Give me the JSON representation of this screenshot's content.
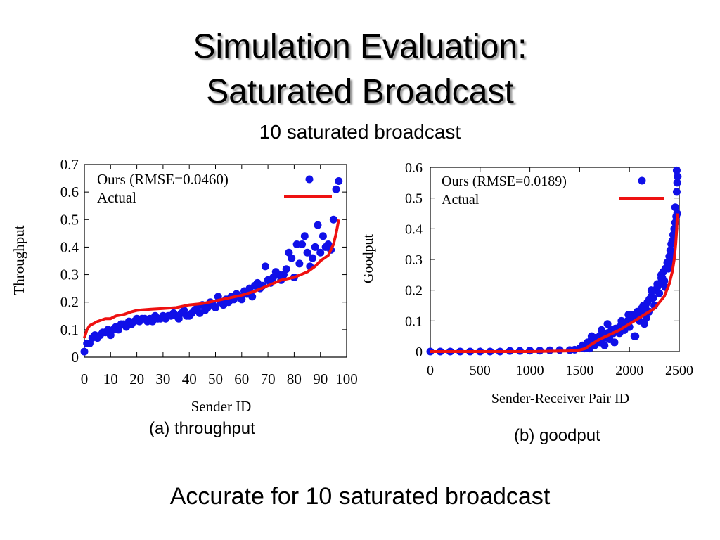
{
  "slide": {
    "title_line1": "Simulation Evaluation:",
    "title_line2": "Saturated Broadcast",
    "subtitle": "10 saturated broadcast",
    "caption_a": "(a) throughput",
    "caption_b": "(b) goodput",
    "footer": "Accurate for 10 saturated broadcast"
  },
  "colors": {
    "ours": "#1010e8",
    "actual": "#ee1111"
  },
  "chart_data": [
    {
      "type": "scatter",
      "xlabel": "Sender ID",
      "ylabel": "Throughput",
      "xlim": [
        0,
        100
      ],
      "ylim": [
        0,
        0.7
      ],
      "xticks": [
        "0",
        "10",
        "20",
        "30",
        "40",
        "50",
        "60",
        "70",
        "80",
        "90",
        "100"
      ],
      "yticks": [
        "0",
        "0.1",
        "0.2",
        "0.3",
        "0.4",
        "0.5",
        "0.6",
        "0.7"
      ],
      "legend_position": "top-right",
      "series": [
        {
          "name": "Ours (RMSE=0.0460)",
          "kind": "points",
          "x": [
            0,
            1,
            2,
            3,
            4,
            5,
            6,
            7,
            8,
            9,
            10,
            11,
            12,
            13,
            14,
            15,
            16,
            17,
            18,
            19,
            20,
            21,
            22,
            23,
            24,
            25,
            26,
            27,
            28,
            29,
            30,
            31,
            32,
            33,
            34,
            35,
            36,
            37,
            38,
            39,
            40,
            41,
            42,
            43,
            44,
            45,
            46,
            47,
            48,
            49,
            50,
            51,
            52,
            53,
            54,
            55,
            56,
            57,
            58,
            59,
            60,
            61,
            62,
            63,
            64,
            65,
            66,
            67,
            68,
            69,
            70,
            71,
            72,
            73,
            74,
            75,
            76,
            77,
            78,
            79,
            80,
            81,
            82,
            83,
            84,
            85,
            86,
            87,
            88,
            89,
            90,
            91,
            92,
            93,
            94,
            95,
            96,
            97
          ],
          "y": [
            0.02,
            0.05,
            0.05,
            0.07,
            0.08,
            0.07,
            0.08,
            0.09,
            0.09,
            0.1,
            0.08,
            0.1,
            0.11,
            0.1,
            0.12,
            0.12,
            0.11,
            0.13,
            0.12,
            0.13,
            0.14,
            0.13,
            0.14,
            0.14,
            0.13,
            0.14,
            0.13,
            0.15,
            0.14,
            0.14,
            0.15,
            0.14,
            0.15,
            0.15,
            0.16,
            0.15,
            0.14,
            0.16,
            0.17,
            0.15,
            0.15,
            0.16,
            0.17,
            0.18,
            0.16,
            0.19,
            0.17,
            0.18,
            0.2,
            0.19,
            0.18,
            0.22,
            0.2,
            0.19,
            0.21,
            0.2,
            0.22,
            0.21,
            0.23,
            0.22,
            0.21,
            0.24,
            0.23,
            0.25,
            0.22,
            0.26,
            0.27,
            0.25,
            0.26,
            0.33,
            0.28,
            0.27,
            0.29,
            0.31,
            0.3,
            0.28,
            0.3,
            0.32,
            0.38,
            0.36,
            0.29,
            0.41,
            0.34,
            0.41,
            0.44,
            0.38,
            0.33,
            0.36,
            0.4,
            0.48,
            0.38,
            0.44,
            0.4,
            0.41,
            0.39,
            0.5,
            0.61,
            0.64
          ]
        },
        {
          "name": "Actual",
          "kind": "line",
          "x": [
            0,
            1,
            2,
            5,
            8,
            10,
            12,
            15,
            18,
            20,
            22,
            25,
            30,
            35,
            40,
            45,
            50,
            55,
            60,
            65,
            70,
            75,
            80,
            85,
            88,
            90,
            93,
            95,
            96,
            97
          ],
          "y": [
            0.07,
            0.1,
            0.115,
            0.13,
            0.14,
            0.14,
            0.15,
            0.155,
            0.165,
            0.17,
            0.172,
            0.174,
            0.177,
            0.18,
            0.19,
            0.195,
            0.205,
            0.215,
            0.225,
            0.24,
            0.26,
            0.28,
            0.29,
            0.31,
            0.33,
            0.35,
            0.37,
            0.41,
            0.45,
            0.5
          ]
        }
      ]
    },
    {
      "type": "scatter",
      "xlabel": "Sender-Receiver Pair ID",
      "ylabel": "Goodput",
      "xlim": [
        0,
        2500
      ],
      "ylim": [
        0,
        0.6
      ],
      "xticks": [
        "0",
        "500",
        "1000",
        "1500",
        "2000",
        "2500"
      ],
      "yticks": [
        "0",
        "0.1",
        "0.2",
        "0.3",
        "0.4",
        "0.5",
        "0.6"
      ],
      "legend_position": "top-right",
      "series": [
        {
          "name": "Ours (RMSE=0.0189)",
          "kind": "points",
          "x": [
            0,
            100,
            200,
            300,
            400,
            500,
            600,
            700,
            800,
            900,
            1000,
            1100,
            1200,
            1300,
            1400,
            1450,
            1500,
            1530,
            1560,
            1580,
            1600,
            1620,
            1640,
            1660,
            1680,
            1700,
            1720,
            1740,
            1760,
            1780,
            1800,
            1820,
            1840,
            1860,
            1880,
            1900,
            1920,
            1940,
            1960,
            1980,
            2000,
            2020,
            2040,
            2060,
            2080,
            2100,
            2120,
            2140,
            2160,
            2180,
            2200,
            2220,
            2240,
            2260,
            2280,
            2300,
            2320,
            2340,
            2360,
            2380,
            2400,
            2410,
            2420,
            2430,
            2440,
            2450,
            2460,
            2470,
            2480,
            1600,
            1650,
            1700,
            1750,
            1800,
            1850,
            1900,
            1950,
            2000,
            2050,
            2100,
            2150,
            2200,
            2250,
            2300,
            2350,
            2400,
            1620,
            1720,
            1820,
            1920,
            2020,
            2120,
            2220,
            2320,
            2420,
            1550,
            1780,
            1990,
            2060,
            2170,
            2280,
            2330,
            2360,
            2390,
            2430,
            2460,
            2475,
            2480,
            2485,
            2475
          ],
          "y": [
            0,
            0,
            0,
            0,
            0,
            0,
            0,
            0,
            0.002,
            0.002,
            0.003,
            0.003,
            0.004,
            0.005,
            0.005,
            0.006,
            0.01,
            0.02,
            0.015,
            0.03,
            0.025,
            0.04,
            0.03,
            0.045,
            0.035,
            0.05,
            0.04,
            0.055,
            0.045,
            0.06,
            0.05,
            0.07,
            0.06,
            0.075,
            0.065,
            0.08,
            0.085,
            0.09,
            0.095,
            0.1,
            0.105,
            0.11,
            0.12,
            0.115,
            0.13,
            0.125,
            0.14,
            0.15,
            0.145,
            0.16,
            0.17,
            0.18,
            0.175,
            0.2,
            0.21,
            0.22,
            0.24,
            0.26,
            0.27,
            0.29,
            0.31,
            0.33,
            0.35,
            0.36,
            0.38,
            0.4,
            0.42,
            0.44,
            0.45,
            0.01,
            0.02,
            0.03,
            0.02,
            0.04,
            0.03,
            0.06,
            0.07,
            0.08,
            0.05,
            0.1,
            0.09,
            0.13,
            0.15,
            0.19,
            0.23,
            0.28,
            0.05,
            0.07,
            0.06,
            0.1,
            0.12,
            0.13,
            0.2,
            0.25,
            0.3,
            0.01,
            0.09,
            0.12,
            0.05,
            0.11,
            0.22,
            0.24,
            0.21,
            0.27,
            0.32,
            0.47,
            0.52,
            0.55,
            0.57,
            0.59
          ],
          "y_check": null
        },
        {
          "name": "Actual",
          "kind": "line",
          "x": [
            0,
            500,
            1000,
            1400,
            1500,
            1560,
            1600,
            1700,
            1800,
            1900,
            2000,
            2100,
            2200,
            2250,
            2300,
            2350,
            2400,
            2430,
            2450,
            2465,
            2475,
            2480
          ],
          "y": [
            0,
            0,
            0,
            0.002,
            0.005,
            0.01,
            0.02,
            0.04,
            0.055,
            0.07,
            0.09,
            0.11,
            0.13,
            0.14,
            0.16,
            0.18,
            0.22,
            0.26,
            0.3,
            0.35,
            0.4,
            0.45
          ]
        }
      ]
    }
  ]
}
